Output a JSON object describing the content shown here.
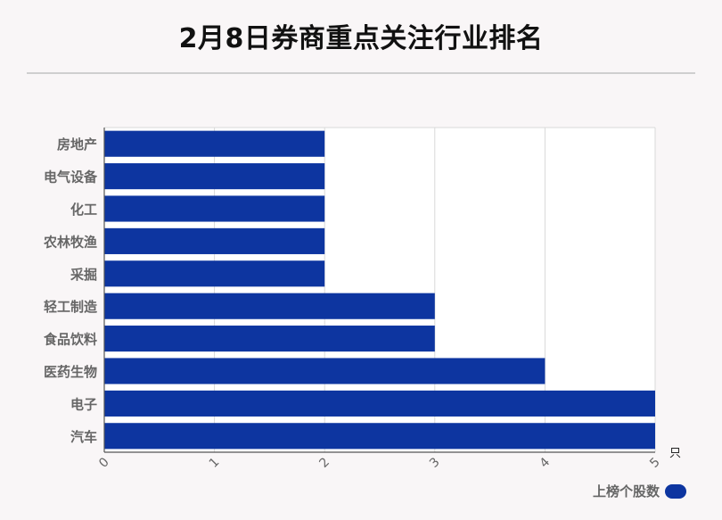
{
  "chart_data": {
    "type": "bar",
    "orientation": "horizontal",
    "title": "2月8日券商重点关注行业排名",
    "categories": [
      "房地产",
      "电气设备",
      "化工",
      "农林牧渔",
      "采掘",
      "轻工制造",
      "食品饮料",
      "医药生物",
      "电子",
      "汽车"
    ],
    "series": [
      {
        "name": "上榜个股数",
        "values": [
          2,
          2,
          2,
          2,
          2,
          3,
          3,
          4,
          5,
          5
        ]
      }
    ],
    "xlim": [
      0,
      5
    ],
    "xticks": [
      "0",
      "1",
      "2",
      "3",
      "4",
      "5"
    ],
    "xunit": "只",
    "grid": true,
    "legend_position": "bottom-right",
    "bar_color": "#0d35a0"
  }
}
